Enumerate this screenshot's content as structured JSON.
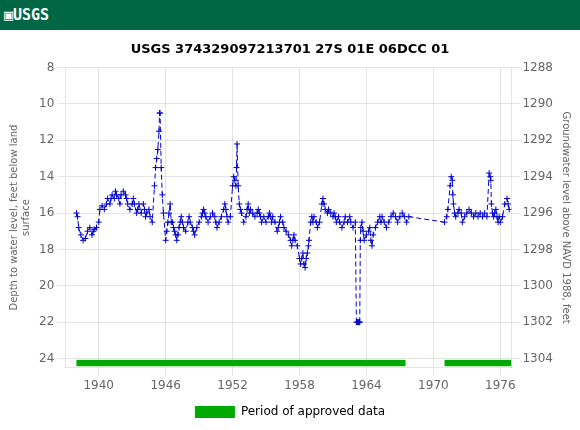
{
  "chart_data": {
    "type": "line",
    "header": "▣USGS",
    "header_color": "#006644",
    "title": "USGS 374329097213701 27S 01E 06DCC 01",
    "y_label": "Depth to water level, feet below land\nsurface",
    "y2_label": "Groundwater level above NAVD 1988, feet",
    "xlim": [
      1937,
      1977
    ],
    "xticks": [
      1940,
      1946,
      1952,
      1958,
      1964,
      1970,
      1976
    ],
    "ylim": [
      24.5,
      8
    ],
    "yticks": [
      8,
      10,
      12,
      14,
      16,
      18,
      20,
      22,
      24
    ],
    "y2lim": [
      1304.5,
      1288
    ],
    "y2ticks": [
      1288,
      1290,
      1292,
      1294,
      1296,
      1298,
      1300,
      1302,
      1304
    ],
    "grid": true,
    "legend": "bottom",
    "x": [
      1938.0,
      1938.1,
      1938.2,
      1938.4,
      1938.6,
      1938.8,
      1939.0,
      1939.2,
      1939.4,
      1939.5,
      1939.6,
      1939.8,
      1940.0,
      1940.1,
      1940.3,
      1940.5,
      1940.7,
      1940.8,
      1941.0,
      1941.1,
      1941.2,
      1941.4,
      1941.5,
      1941.6,
      1941.8,
      1941.9,
      1942.0,
      1942.2,
      1942.4,
      1942.5,
      1942.6,
      1942.8,
      1943.0,
      1943.1,
      1943.2,
      1943.4,
      1943.5,
      1943.6,
      1943.8,
      1944.0,
      1944.1,
      1944.2,
      1944.3,
      1944.5,
      1944.6,
      1944.8,
      1945.0,
      1945.1,
      1945.2,
      1945.3,
      1945.4,
      1945.45,
      1945.5,
      1945.6,
      1945.7,
      1945.8,
      1946.0,
      1946.1,
      1946.2,
      1946.3,
      1946.4,
      1946.5,
      1946.6,
      1946.7,
      1946.8,
      1946.9,
      1947.0,
      1947.1,
      1947.2,
      1947.3,
      1947.4,
      1947.5,
      1947.6,
      1947.8,
      1948.0,
      1948.1,
      1948.2,
      1948.4,
      1948.5,
      1948.6,
      1948.8,
      1949.0,
      1949.2,
      1949.3,
      1949.4,
      1949.5,
      1949.6,
      1949.8,
      1950.0,
      1950.2,
      1950.4,
      1950.5,
      1950.6,
      1950.8,
      1951.0,
      1951.2,
      1951.3,
      1951.4,
      1951.5,
      1951.6,
      1951.8,
      1952.0,
      1952.1,
      1952.2,
      1952.3,
      1952.35,
      1952.4,
      1952.5,
      1952.6,
      1952.7,
      1952.8,
      1953.0,
      1953.2,
      1953.3,
      1953.4,
      1953.5,
      1953.6,
      1953.8,
      1954.0,
      1954.2,
      1954.3,
      1954.4,
      1954.5,
      1954.6,
      1954.8,
      1955.0,
      1955.2,
      1955.3,
      1955.4,
      1955.5,
      1955.6,
      1955.8,
      1956.0,
      1956.1,
      1956.2,
      1956.3,
      1956.5,
      1956.6,
      1956.8,
      1957.0,
      1957.2,
      1957.3,
      1957.4,
      1957.5,
      1957.6,
      1957.8,
      1958.0,
      1958.1,
      1958.2,
      1958.3,
      1958.4,
      1958.5,
      1958.6,
      1958.7,
      1958.8,
      1958.85,
      1959.0,
      1959.1,
      1959.2,
      1959.3,
      1959.5,
      1959.6,
      1959.8,
      1960.0,
      1960.1,
      1960.2,
      1960.3,
      1960.5,
      1960.6,
      1960.8,
      1961.0,
      1961.1,
      1961.2,
      1961.3,
      1961.5,
      1961.6,
      1961.8,
      1962.0,
      1962.1,
      1962.3,
      1962.5,
      1962.6,
      1962.8,
      1963.0,
      1963.1,
      1963.2,
      1963.3,
      1963.35,
      1963.4,
      1963.45,
      1963.5,
      1963.6,
      1963.7,
      1963.8,
      1964.0,
      1964.2,
      1964.3,
      1964.4,
      1964.5,
      1964.6,
      1964.8,
      1965.0,
      1965.2,
      1965.3,
      1965.4,
      1965.6,
      1965.8,
      1966.0,
      1966.2,
      1966.4,
      1966.6,
      1966.8,
      1967.0,
      1967.2,
      1967.4,
      1967.6,
      1967.8,
      1971.0,
      1971.2,
      1971.3,
      1971.5,
      1971.6,
      1971.7,
      1971.75,
      1971.8,
      1971.9,
      1972.0,
      1972.2,
      1972.3,
      1972.5,
      1972.6,
      1972.8,
      1973.0,
      1973.2,
      1973.4,
      1973.6,
      1973.8,
      1974.0,
      1974.2,
      1974.4,
      1974.6,
      1974.8,
      1975.0,
      1975.1,
      1975.15,
      1975.2,
      1975.3,
      1975.4,
      1975.5,
      1975.6,
      1975.7,
      1975.8,
      1975.9,
      1976.0,
      1976.2,
      1976.4,
      1976.6,
      1976.7,
      1976.8
    ],
    "series": [
      {
        "color": "#0000CC",
        "line_style": "dashed",
        "marker": "plus",
        "values": [
          16.0,
          16.2,
          16.8,
          17.2,
          17.5,
          17.4,
          17.0,
          16.8,
          17.2,
          17.0,
          16.9,
          16.8,
          16.5,
          15.8,
          15.6,
          15.8,
          15.5,
          15.2,
          15.5,
          15.2,
          15.0,
          15.2,
          14.8,
          15.0,
          15.2,
          15.5,
          15.0,
          14.8,
          15.0,
          15.2,
          15.5,
          15.8,
          15.5,
          15.2,
          15.5,
          16.0,
          15.8,
          15.5,
          16.0,
          15.5,
          15.8,
          16.2,
          16.0,
          15.8,
          16.2,
          16.5,
          14.5,
          13.5,
          13.0,
          12.5,
          11.5,
          10.5,
          10.5,
          13.5,
          15.0,
          16.0,
          17.5,
          17.0,
          16.5,
          16.0,
          15.5,
          16.5,
          16.5,
          16.8,
          17.0,
          17.2,
          17.5,
          17.2,
          16.8,
          16.5,
          16.2,
          16.5,
          16.8,
          17.0,
          16.5,
          16.2,
          16.5,
          16.8,
          17.0,
          17.2,
          16.8,
          16.5,
          16.2,
          16.0,
          15.8,
          16.0,
          16.2,
          16.5,
          16.2,
          16.0,
          16.2,
          16.5,
          16.8,
          16.5,
          16.2,
          15.8,
          15.5,
          15.8,
          16.2,
          16.5,
          16.2,
          14.5,
          14.0,
          14.2,
          14.5,
          13.5,
          12.2,
          14.5,
          15.5,
          15.8,
          16.0,
          16.5,
          16.2,
          15.8,
          15.5,
          16.0,
          15.8,
          16.0,
          16.2,
          16.0,
          15.8,
          16.0,
          16.2,
          16.5,
          16.2,
          16.5,
          16.2,
          16.0,
          16.2,
          16.5,
          16.2,
          16.5,
          17.0,
          16.8,
          16.5,
          16.2,
          16.5,
          16.8,
          17.0,
          17.2,
          17.5,
          17.8,
          17.5,
          17.2,
          17.5,
          17.8,
          18.5,
          18.8,
          18.5,
          18.2,
          18.8,
          19.0,
          18.5,
          18.2,
          17.8,
          17.5,
          16.5,
          16.2,
          16.5,
          16.2,
          16.5,
          16.8,
          16.5,
          15.5,
          15.2,
          15.5,
          15.8,
          16.0,
          15.8,
          16.0,
          16.2,
          16.0,
          16.2,
          16.5,
          16.2,
          16.5,
          16.8,
          16.5,
          16.2,
          16.5,
          16.2,
          16.5,
          16.8,
          16.5,
          22.0,
          22.0,
          22.0,
          22.0,
          22.0,
          17.5,
          16.8,
          16.5,
          17.0,
          17.5,
          17.2,
          17.0,
          16.8,
          17.5,
          17.8,
          17.2,
          16.8,
          16.5,
          16.2,
          16.5,
          16.2,
          16.5,
          16.8,
          16.5,
          16.2,
          16.0,
          16.2,
          16.5,
          16.2,
          16.0,
          16.2,
          16.5,
          16.2,
          16.5,
          16.2,
          15.8,
          14.5,
          14.0,
          14.2,
          15.0,
          15.5,
          16.0,
          16.2,
          16.0,
          15.8,
          16.0,
          16.5,
          16.2,
          16.0,
          15.8,
          16.0,
          16.2,
          16.0,
          16.2,
          16.0,
          16.2,
          16.0,
          16.2,
          13.8,
          14.0,
          14.2,
          15.5,
          16.0,
          16.2,
          16.0,
          15.8,
          16.2,
          16.5,
          16.2,
          16.5,
          16.2,
          15.5,
          15.2,
          15.5,
          15.8
        ]
      },
      {
        "name": "Period of approved data",
        "type": "bar",
        "color": "#00AA00",
        "values": [
          [
            1938.0,
            1967.5
          ],
          [
            1971.0,
            1977.0
          ]
        ],
        "y": 24.25,
        "height": 0.35
      }
    ]
  }
}
